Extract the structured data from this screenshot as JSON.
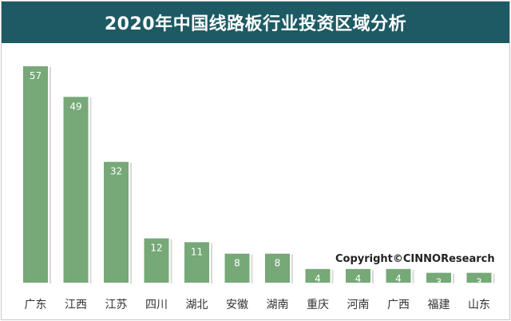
{
  "colors": {
    "bar": "#76a878",
    "title_bg": "#1d5a64",
    "text": "#333333",
    "label": "#ffffff"
  },
  "chart_data": {
    "type": "bar",
    "title": "2020年中国线路板行业投资区域分析",
    "categories": [
      "广东",
      "江西",
      "江苏",
      "四川",
      "湖北",
      "安徽",
      "湖南",
      "重庆",
      "河南",
      "广西",
      "福建",
      "山东"
    ],
    "values": [
      57,
      49,
      32,
      12,
      11,
      8,
      8,
      4,
      4,
      4,
      3,
      3
    ],
    "xlabel": "",
    "ylabel": "",
    "ylim": [
      0,
      57
    ],
    "grid": false,
    "legend": "none"
  },
  "watermark": "Copyright©CINNOResearch"
}
